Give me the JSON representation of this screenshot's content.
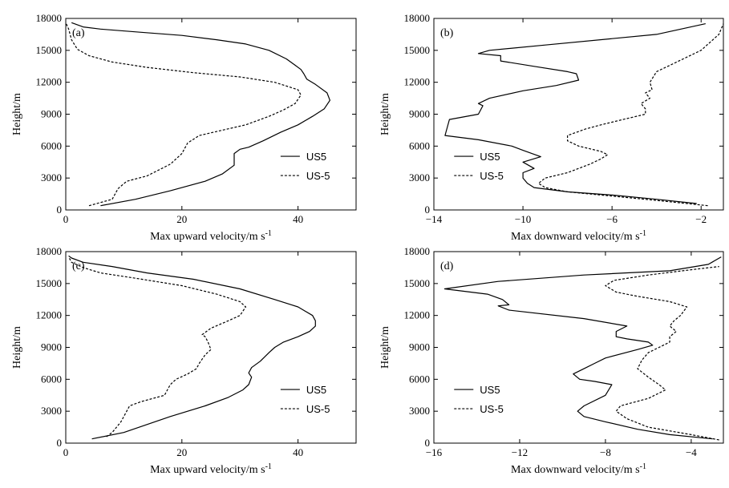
{
  "chart_data": [
    {
      "type": "line",
      "panel_label": "(a)",
      "xlabel": "Max upward velocity/m s",
      "xlabel_sup": "-1",
      "ylabel": "Height/m",
      "xlim": [
        0,
        50
      ],
      "ylim": [
        0,
        18000
      ],
      "xticks": [
        0,
        20,
        40
      ],
      "xtick_labels": [
        "0",
        "20",
        "40"
      ],
      "yticks": [
        0,
        3000,
        6000,
        9000,
        12000,
        15000,
        18000
      ],
      "ytick_labels": [
        "0",
        "3000",
        "6000",
        "9000",
        "12000",
        "15000",
        "18000"
      ],
      "legend_position": "bottom-right",
      "series": [
        {
          "name": "US5",
          "style": "solid",
          "x": [
            6,
            12,
            18,
            24,
            27,
            29,
            29,
            30,
            31.5,
            34,
            37,
            40,
            42.5,
            44.5,
            45.5,
            45,
            43,
            41.5,
            41,
            40.5,
            39.5,
            38,
            35,
            31,
            26,
            20,
            13,
            6,
            3,
            1
          ],
          "y": [
            400,
            1000,
            1800,
            2700,
            3400,
            4200,
            5300,
            5700,
            5900,
            6500,
            7300,
            8000,
            8800,
            9500,
            10300,
            11000,
            11800,
            12300,
            12800,
            13200,
            13600,
            14200,
            15000,
            15600,
            16000,
            16400,
            16700,
            17000,
            17200,
            17600
          ]
        },
        {
          "name": "US-5",
          "style": "dashed",
          "x": [
            4,
            6,
            8,
            8.5,
            9,
            10.5,
            14,
            18,
            20,
            21,
            23,
            27,
            31,
            35,
            37.5,
            39.5,
            40.5,
            40,
            36,
            30,
            22,
            14,
            8,
            4,
            2,
            1,
            0.5,
            0
          ],
          "y": [
            400,
            700,
            1000,
            1500,
            2000,
            2700,
            3200,
            4300,
            5300,
            6300,
            7000,
            7500,
            8000,
            8800,
            9400,
            10000,
            10800,
            11300,
            12000,
            12500,
            12900,
            13400,
            13900,
            14500,
            15100,
            16000,
            17000,
            17600
          ]
        }
      ]
    },
    {
      "type": "line",
      "panel_label": "(b)",
      "xlabel": "Max downward velocity/m s",
      "xlabel_sup": "-1",
      "ylabel": "Height/m",
      "xlim": [
        -14,
        -1
      ],
      "ylim": [
        0,
        18000
      ],
      "xticks": [
        -14,
        -10,
        -6,
        -2
      ],
      "xtick_labels": [
        "−14",
        "−10",
        "−6",
        "−2"
      ],
      "yticks": [
        0,
        3000,
        6000,
        9000,
        12000,
        15000,
        18000
      ],
      "ytick_labels": [
        "0",
        "3000",
        "6000",
        "9000",
        "12000",
        "15000",
        "18000"
      ],
      "legend_position": "bottom-left",
      "series": [
        {
          "name": "US5",
          "style": "solid",
          "x": [
            -2.2,
            -4,
            -6,
            -8,
            -9.5,
            -9.8,
            -10,
            -10,
            -9.5,
            -10,
            -9.2,
            -10,
            -10.5,
            -12,
            -13.5,
            -13.3,
            -12,
            -11.8,
            -12,
            -11.5,
            -10,
            -8.5,
            -7.5,
            -7.6,
            -8,
            -9.5,
            -11,
            -11,
            -12,
            -11.5,
            -9,
            -4,
            -1.8
          ],
          "y": [
            600,
            1000,
            1400,
            1700,
            2100,
            2500,
            3000,
            3500,
            3900,
            4500,
            5000,
            5600,
            6000,
            6600,
            7000,
            8500,
            9000,
            9800,
            10000,
            10500,
            11200,
            11700,
            12200,
            12800,
            13000,
            13500,
            14000,
            14500,
            14700,
            15000,
            15500,
            16500,
            17500
          ]
        },
        {
          "name": "US-5",
          "style": "dashed",
          "x": [
            -1.7,
            -4,
            -6,
            -8,
            -9,
            -9.3,
            -9,
            -8,
            -7,
            -6.5,
            -6.2,
            -6.5,
            -7.5,
            -8,
            -8,
            -7.2,
            -6.5,
            -5.5,
            -4.5,
            -4.5,
            -4.7,
            -4.3,
            -4.5,
            -4.2,
            -4.3,
            -4,
            -3.5,
            -3,
            -2,
            -1.2,
            -1
          ],
          "y": [
            400,
            900,
            1300,
            1700,
            2100,
            2500,
            3000,
            3500,
            4300,
            4800,
            5200,
            5500,
            6000,
            6500,
            7000,
            7600,
            8000,
            8500,
            9000,
            9500,
            10000,
            10500,
            11000,
            11300,
            12000,
            13000,
            13500,
            14000,
            15000,
            16500,
            17500
          ]
        }
      ]
    },
    {
      "type": "line",
      "panel_label": "(c)",
      "xlabel": "Max upward velocity/m s",
      "xlabel_sup": "-1",
      "ylabel": "Height/m",
      "xlim": [
        0,
        50
      ],
      "ylim": [
        0,
        18000
      ],
      "xticks": [
        0,
        20,
        40
      ],
      "xtick_labels": [
        "0",
        "20",
        "40"
      ],
      "yticks": [
        0,
        3000,
        6000,
        9000,
        12000,
        15000,
        18000
      ],
      "ytick_labels": [
        "0",
        "3000",
        "6000",
        "9000",
        "12000",
        "15000",
        "18000"
      ],
      "legend_position": "bottom-right",
      "series": [
        {
          "name": "US5",
          "style": "solid",
          "x": [
            4.5,
            10,
            18,
            24,
            28,
            30.5,
            31.5,
            32,
            31.5,
            32,
            33.5,
            35,
            36,
            37.5,
            40,
            42,
            43,
            43,
            42.5,
            40,
            36,
            30,
            22,
            14,
            8,
            3,
            1,
            0.5
          ],
          "y": [
            400,
            1000,
            2500,
            3500,
            4300,
            5000,
            5500,
            6200,
            6600,
            7100,
            7700,
            8500,
            9000,
            9500,
            10000,
            10500,
            11000,
            11500,
            12000,
            12800,
            13500,
            14500,
            15400,
            16000,
            16600,
            17000,
            17400,
            17600
          ]
        },
        {
          "name": "US-5",
          "style": "dashed",
          "x": [
            7,
            8,
            9.5,
            11,
            13,
            17,
            18,
            19,
            21,
            22.5,
            23,
            24,
            25,
            24.5,
            24,
            23.5,
            25,
            28,
            30,
            31,
            30,
            26,
            20,
            12,
            6,
            3,
            1,
            0.5
          ],
          "y": [
            600,
            1000,
            2000,
            3500,
            3900,
            4500,
            5500,
            6000,
            6500,
            7000,
            7500,
            8300,
            8800,
            9500,
            10000,
            10200,
            10800,
            11500,
            12000,
            12800,
            13300,
            14000,
            14800,
            15500,
            16000,
            16500,
            17000,
            17500
          ]
        }
      ]
    },
    {
      "type": "line",
      "panel_label": "(d)",
      "xlabel": "Max downward velocity/m s",
      "xlabel_sup": "-1",
      "ylabel": "Height/m",
      "xlim": [
        -16,
        -2.5
      ],
      "ylim": [
        0,
        18000
      ],
      "xticks": [
        -16,
        -12,
        -8,
        -4
      ],
      "xtick_labels": [
        "−16",
        "−12",
        "−8",
        "−4"
      ],
      "yticks": [
        0,
        3000,
        6000,
        9000,
        12000,
        15000,
        18000
      ],
      "ytick_labels": [
        "0",
        "3000",
        "6000",
        "9000",
        "12000",
        "15000",
        "18000"
      ],
      "legend_position": "bottom-left",
      "series": [
        {
          "name": "US5",
          "style": "solid",
          "x": [
            -3,
            -5,
            -6.5,
            -8,
            -9,
            -9.3,
            -9,
            -8,
            -7.7,
            -8.5,
            -9.2,
            -9.5,
            -9,
            -8.5,
            -8,
            -6.5,
            -5.8,
            -6,
            -7,
            -7.5,
            -7.5,
            -7,
            -9,
            -12.5,
            -13,
            -12.5,
            -12.8,
            -13.5,
            -15.5,
            -13,
            -9,
            -5,
            -3.2,
            -2.6
          ],
          "y": [
            400,
            800,
            1300,
            2000,
            2500,
            3000,
            3500,
            4500,
            5500,
            5800,
            6000,
            6500,
            7000,
            7500,
            8000,
            8800,
            9200,
            9500,
            9800,
            10000,
            10500,
            11000,
            11700,
            12500,
            12900,
            13000,
            13500,
            14000,
            14500,
            15200,
            15800,
            16200,
            16800,
            17500
          ]
        },
        {
          "name": "US-5",
          "style": "dashed",
          "x": [
            -2.7,
            -4,
            -6,
            -7,
            -7.5,
            -7.3,
            -6,
            -5.2,
            -5.5,
            -6,
            -6.5,
            -6.3,
            -6,
            -5.5,
            -5,
            -5,
            -4.7,
            -5,
            -4.8,
            -4.5,
            -4.2,
            -5,
            -6.5,
            -7.5,
            -8,
            -7.6,
            -6,
            -4,
            -2.7
          ],
          "y": [
            300,
            800,
            1500,
            2300,
            3000,
            3500,
            4200,
            5000,
            5500,
            6200,
            7000,
            7800,
            8500,
            9000,
            9500,
            10000,
            10500,
            11000,
            11500,
            12000,
            12800,
            13300,
            13800,
            14200,
            14800,
            15300,
            15800,
            16300,
            16600
          ]
        }
      ]
    }
  ]
}
